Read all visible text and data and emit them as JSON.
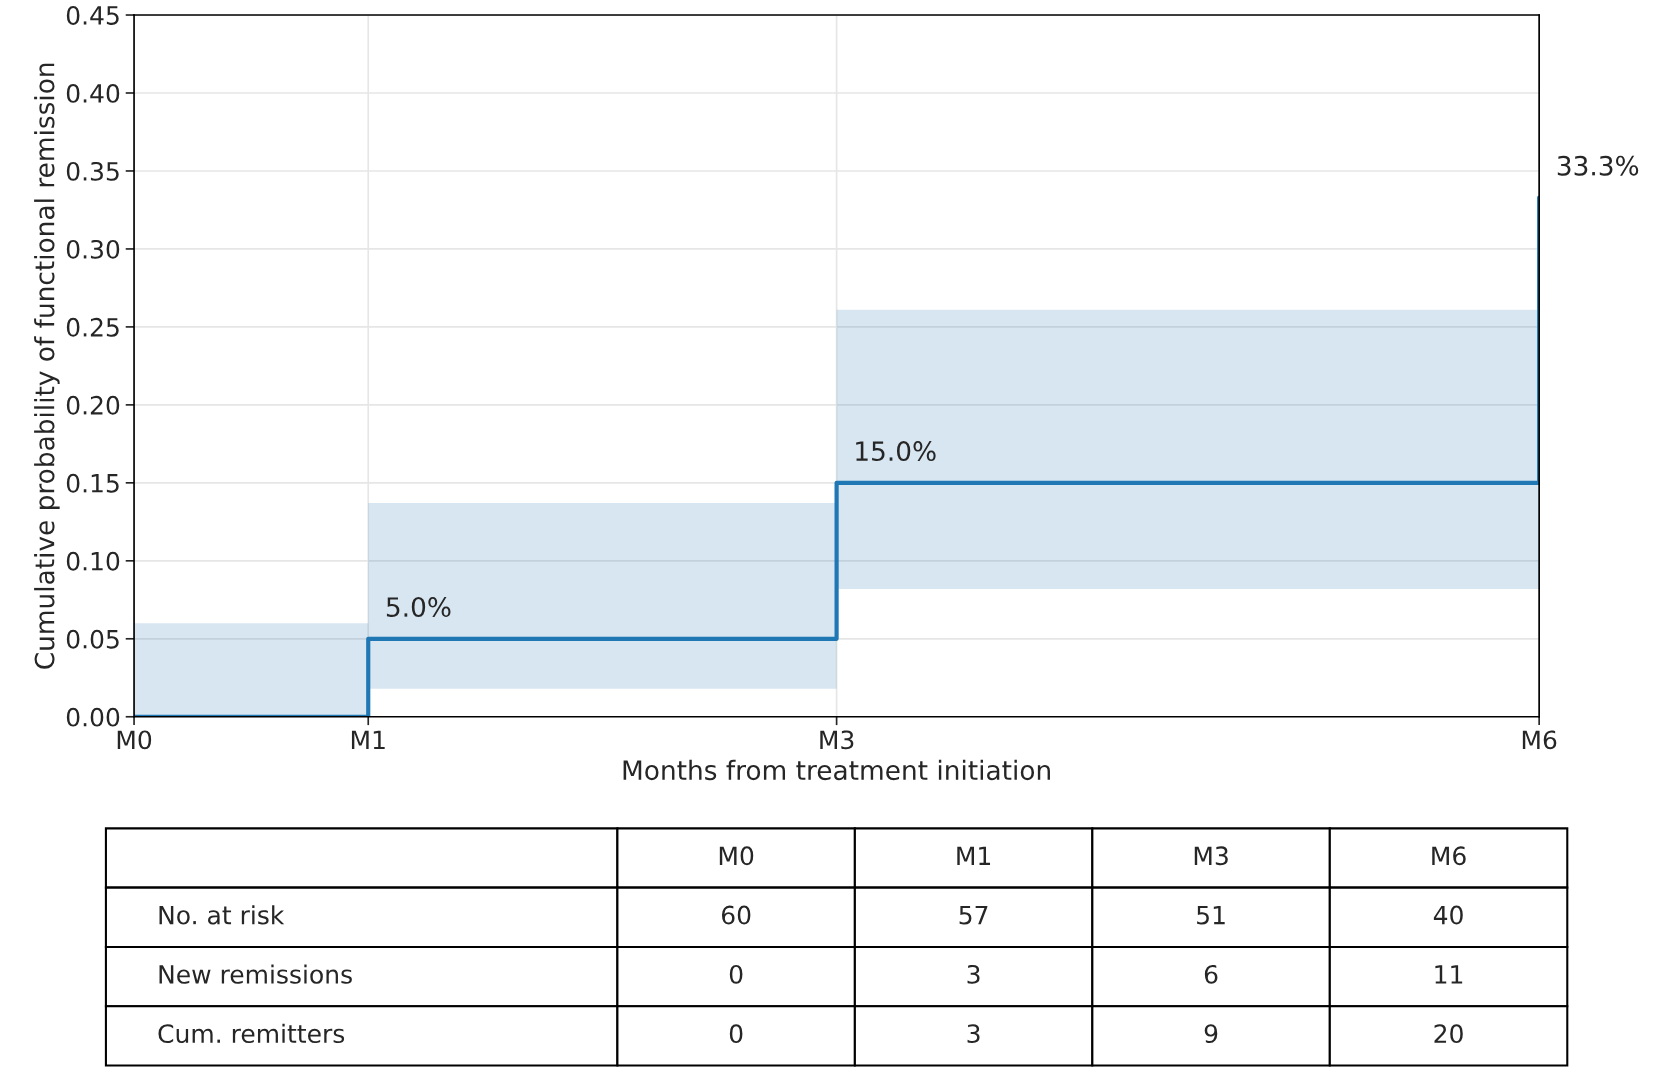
{
  "chart_data": {
    "type": "step",
    "xlabel": "Months from treatment initiation",
    "ylabel": "Cumulative probability of functional remission",
    "categories": [
      "M0",
      "M1",
      null,
      "M3",
      null,
      null,
      "M6"
    ],
    "series": [
      {
        "color": "#1f77b4",
        "values": [
          0,
          0.05,
          null,
          0.15,
          null,
          null,
          0.333
        ],
        "lower": [
          0,
          0.018,
          0.018,
          0.082,
          0.082,
          0.082,
          0.082
        ],
        "upper": [
          0.06,
          0.137,
          0.137,
          0.261,
          0.261,
          0.261,
          0.261
        ],
        "value_labels": [
          null,
          "5.0%",
          null,
          "15.0%",
          null,
          null,
          "33.3%"
        ]
      }
    ],
    "ylim": [
      0,
      0.45
    ],
    "yticks": [
      {
        "value": 0,
        "label": "0.00"
      },
      {
        "value": 0.05,
        "label": "0.05"
      },
      {
        "value": 0.1,
        "label": "0.10"
      },
      {
        "value": 0.15,
        "label": "0.15"
      },
      {
        "value": 0.2,
        "label": "0.20"
      },
      {
        "value": 0.25,
        "label": "0.25"
      },
      {
        "value": 0.3,
        "label": "0.30"
      },
      {
        "value": 0.35,
        "label": "0.35"
      },
      {
        "value": 0.4,
        "label": "0.40"
      },
      {
        "value": 0.45,
        "label": "0.45"
      }
    ],
    "grid": true,
    "annotations": [
      "M0",
      "M1",
      "M3",
      "M6",
      "No. at risk",
      "60",
      "57",
      "51",
      "40",
      "New remissions",
      "0",
      "3",
      "6",
      "11",
      "Cum. remitters",
      "0",
      "3",
      "9",
      "20"
    ]
  }
}
